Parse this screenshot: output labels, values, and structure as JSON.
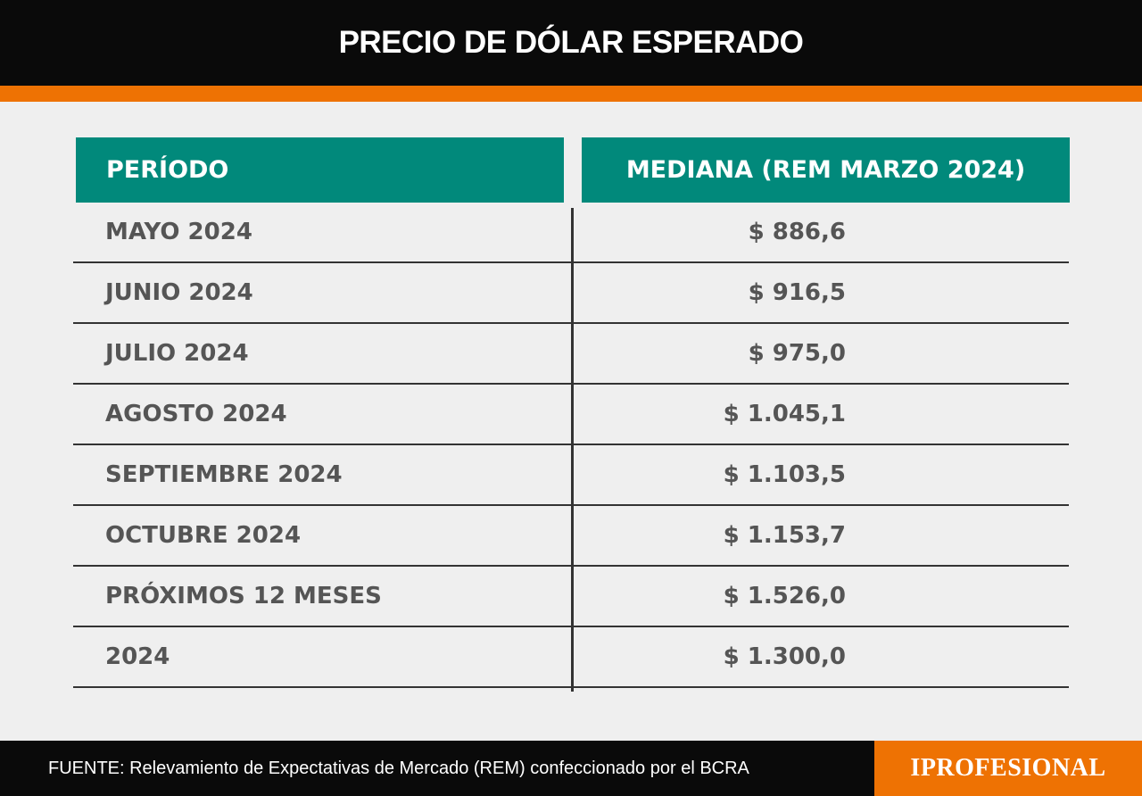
{
  "title": "PRECIO DE DÓLAR ESPERADO",
  "columns": {
    "period": "PERÍODO",
    "median": "MEDIANA (REM MARZO 2024)"
  },
  "rows": [
    {
      "period": "MAYO 2024",
      "value": "$ 886,6"
    },
    {
      "period": "JUNIO 2024",
      "value": "$ 916,5"
    },
    {
      "period": "JULIO 2024",
      "value": "$ 975,0"
    },
    {
      "period": "AGOSTO 2024",
      "value": "$ 1.045,1"
    },
    {
      "period": "SEPTIEMBRE 2024",
      "value": "$ 1.103,5"
    },
    {
      "period": "OCTUBRE 2024",
      "value": "$ 1.153,7"
    },
    {
      "period": "PRÓXIMOS 12 MESES",
      "value": "$ 1.526,0"
    },
    {
      "period": "2024",
      "value": "$ 1.300,0"
    }
  ],
  "footer": {
    "source": "FUENTE: Relevamiento de Expectativas de Mercado (REM) confeccionado por el BCRA",
    "logo": "IPROFESIONAL"
  },
  "colors": {
    "header_bg": "#0a0a0a",
    "accent_orange": "#ee7203",
    "table_header_teal": "#01897b",
    "row_text": "#555555",
    "background": "#efefef"
  }
}
